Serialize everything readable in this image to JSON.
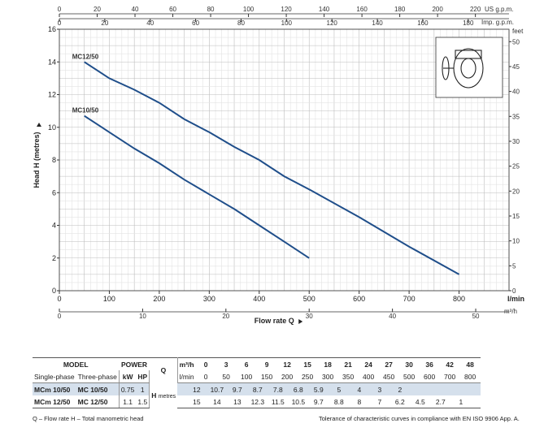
{
  "chart_data": {
    "type": "line",
    "ylabel": "Head H (metres)",
    "xlabel": "Flow rate Q",
    "xunit": "l/min",
    "x_range": [
      0,
      900
    ],
    "y_range": [
      0,
      16
    ],
    "x_ticks": [
      0,
      100,
      200,
      300,
      400,
      500,
      600,
      700,
      800
    ],
    "y_ticks": [
      0,
      2,
      4,
      6,
      8,
      10,
      12,
      14,
      16
    ],
    "m3h_ticks": [
      "0",
      "10",
      "20",
      "30",
      "40",
      "50"
    ],
    "m3h_unit": "m³/h",
    "usgpm_ticks": [
      "0",
      "20",
      "40",
      "60",
      "80",
      "100",
      "120",
      "140",
      "160",
      "180",
      "200",
      "220"
    ],
    "usgpm_unit": "US g.p.m.",
    "impgpm_ticks": [
      "0",
      "20",
      "40",
      "60",
      "80",
      "100",
      "120",
      "140",
      "160",
      "180"
    ],
    "impgpm_unit": "Imp. g.p.m.",
    "feet_ticks": [
      "0",
      "5",
      "10",
      "15",
      "20",
      "25",
      "30",
      "35",
      "40",
      "45",
      "50"
    ],
    "feet_unit": "feet",
    "grid": true,
    "series": [
      {
        "name": "MC12/50",
        "color": "#1f4e8a",
        "x": [
          50,
          100,
          150,
          200,
          250,
          300,
          350,
          400,
          450,
          500,
          600,
          700,
          800
        ],
        "y": [
          14,
          13,
          12.3,
          11.5,
          10.5,
          9.7,
          8.8,
          8,
          7,
          6.2,
          4.5,
          2.7,
          1
        ]
      },
      {
        "name": "MC10/50",
        "color": "#1f4e8a",
        "x": [
          50,
          100,
          150,
          200,
          250,
          300,
          350,
          400,
          450,
          500
        ],
        "y": [
          10.7,
          9.7,
          8.7,
          7.8,
          6.8,
          5.9,
          5,
          4,
          3,
          2
        ]
      }
    ]
  },
  "table": {
    "model": "MODEL",
    "power": "POWER",
    "single_phase": "Single-phase",
    "three_phase": "Three-phase",
    "kw": "kW",
    "hp": "HP",
    "q": "Q",
    "h": "H",
    "metres": "metres",
    "m3h": "m³/h",
    "lmin": "l/min",
    "q_m3h": [
      "0",
      "3",
      "6",
      "9",
      "12",
      "15",
      "18",
      "21",
      "24",
      "27",
      "30",
      "36",
      "42",
      "48"
    ],
    "q_lmin": [
      "0",
      "50",
      "100",
      "150",
      "200",
      "250",
      "300",
      "350",
      "400",
      "450",
      "500",
      "600",
      "700",
      "800"
    ],
    "rows": [
      {
        "single": "MCm 10/50",
        "three": "MC 10/50",
        "kw": "0.75",
        "hp": "1",
        "heads": [
          "12",
          "10.7",
          "9.7",
          "8.7",
          "7.8",
          "6.8",
          "5.9",
          "5",
          "4",
          "3",
          "2",
          "",
          "",
          ""
        ]
      },
      {
        "single": "MCm 12/50",
        "three": "MC 12/50",
        "kw": "1.1",
        "hp": "1.5",
        "heads": [
          "15",
          "14",
          "13",
          "12.3",
          "11.5",
          "10.5",
          "9.7",
          "8.8",
          "8",
          "7",
          "6.2",
          "4.5",
          "2.7",
          "1"
        ]
      }
    ]
  },
  "footer": {
    "left": "Q – Flow rate   H – Total manometric head",
    "right": "Tolerance of characteristic curves in compliance with  EN ISO 9906 App. A."
  }
}
